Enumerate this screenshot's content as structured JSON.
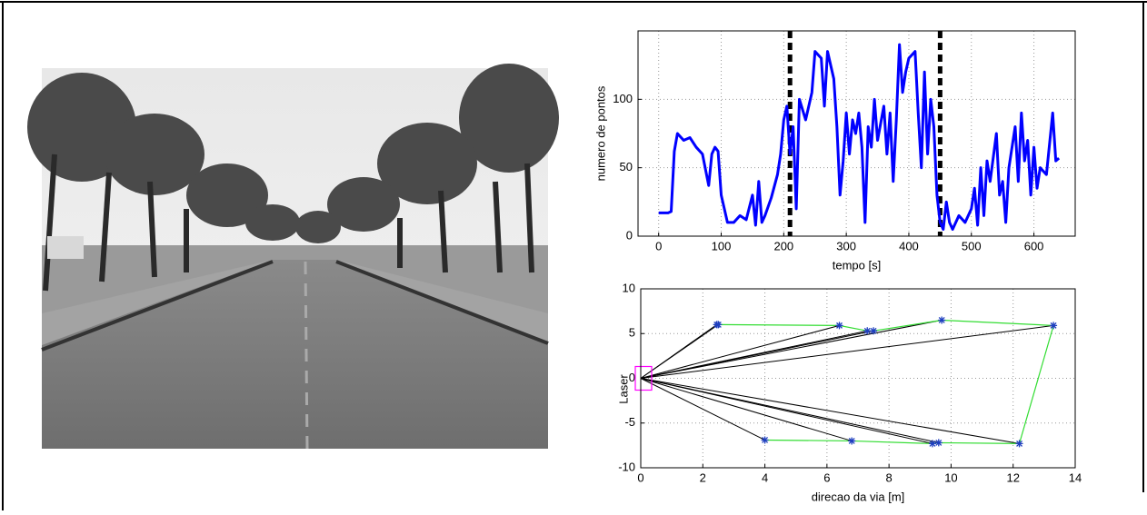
{
  "chart_data": [
    {
      "type": "line",
      "xlabel": "tempo [s]",
      "ylabel": "numero de pontos",
      "xlim": [
        -33,
        666
      ],
      "ylim": [
        0,
        150
      ],
      "xticks": [
        0,
        100,
        200,
        300,
        400,
        500,
        600
      ],
      "yticks": [
        0,
        50,
        100
      ],
      "grid": true,
      "vlines": [
        210,
        450
      ],
      "vline_color": "#000000",
      "series": [
        {
          "color": "#0000ff",
          "x": [
            0,
            15,
            20,
            25,
            30,
            40,
            50,
            60,
            70,
            80,
            85,
            90,
            95,
            100,
            110,
            120,
            130,
            140,
            150,
            155,
            160,
            165,
            170,
            180,
            190,
            195,
            200,
            205,
            210,
            215,
            220,
            225,
            235,
            245,
            250,
            260,
            265,
            270,
            280,
            285,
            290,
            295,
            300,
            305,
            310,
            315,
            320,
            325,
            330,
            335,
            340,
            345,
            350,
            360,
            365,
            370,
            375,
            380,
            385,
            390,
            395,
            400,
            410,
            415,
            420,
            425,
            430,
            435,
            440,
            445,
            450,
            455,
            460,
            465,
            470,
            480,
            490,
            500,
            505,
            510,
            515,
            520,
            525,
            530,
            540,
            545,
            550,
            555,
            560,
            570,
            575,
            580,
            585,
            590,
            595,
            600,
            605,
            610,
            620,
            630,
            635,
            640
          ],
          "values": [
            17,
            17,
            18,
            62,
            75,
            70,
            72,
            65,
            60,
            37,
            60,
            65,
            62,
            30,
            10,
            10,
            15,
            12,
            30,
            8,
            40,
            10,
            15,
            28,
            45,
            60,
            85,
            95,
            60,
            80,
            20,
            100,
            85,
            105,
            135,
            130,
            95,
            135,
            115,
            80,
            30,
            55,
            90,
            60,
            85,
            75,
            90,
            65,
            10,
            80,
            65,
            100,
            70,
            95,
            60,
            90,
            40,
            85,
            140,
            105,
            120,
            130,
            135,
            90,
            50,
            120,
            60,
            100,
            80,
            30,
            10,
            5,
            25,
            10,
            5,
            15,
            10,
            20,
            35,
            8,
            50,
            15,
            55,
            40,
            75,
            30,
            40,
            10,
            50,
            80,
            40,
            90,
            55,
            70,
            30,
            65,
            35,
            50,
            45,
            90,
            55,
            57
          ]
        }
      ]
    },
    {
      "type": "scatter",
      "xlabel": "direcao da via [m]",
      "ylabel": "Laser",
      "xlim": [
        0,
        14
      ],
      "ylim": [
        -10,
        10
      ],
      "xticks": [
        0,
        2,
        4,
        6,
        8,
        10,
        12,
        14
      ],
      "yticks": [
        -10,
        -5,
        0,
        5,
        10
      ],
      "grid": true,
      "ray_color": "#000000",
      "outline_color": "#33dd33",
      "laser_color": "#ff00ff",
      "series": [
        {
          "color": "#1f3fbf",
          "x": [
            2.45,
            2.5,
            6.4,
            7.3,
            7.5,
            9.7,
            13.3,
            12.2,
            9.6,
            9.4,
            6.8,
            4.0
          ],
          "y": [
            6,
            6,
            5.9,
            5.3,
            5.3,
            6.5,
            5.9,
            -7.3,
            -7.2,
            -7.3,
            -7.0,
            -6.9
          ]
        }
      ]
    }
  ]
}
